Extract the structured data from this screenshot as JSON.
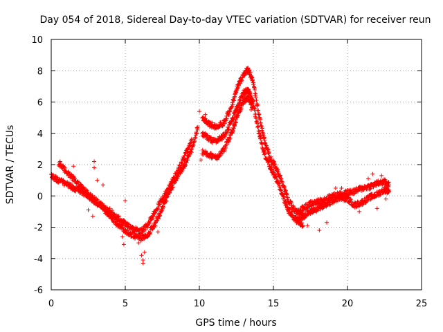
{
  "chart_data": {
    "type": "scatter",
    "title": "Day 054 of 2018, Sidereal Day-to-day VTEC variation (SDTVAR) for receiver reun",
    "xlabel": "GPS time / hours",
    "ylabel": "SDTVAR / TECUs",
    "xlim": [
      0,
      25
    ],
    "ylim": [
      -6,
      10
    ],
    "xticks": [
      0,
      5,
      10,
      15,
      20,
      25
    ],
    "yticks": [
      -6,
      -4,
      -2,
      0,
      2,
      4,
      6,
      8,
      10
    ],
    "grid": true,
    "marker": "+",
    "color": "#ff0000",
    "series": [
      {
        "name": "SDTVAR",
        "bands": [
          {
            "x": [
              0.0,
              0.5,
              1.0,
              1.5,
              2.0,
              2.5,
              3.0,
              3.5,
              4.0,
              4.5,
              5.0,
              5.5,
              6.0,
              6.5,
              7.0,
              7.5,
              8.0,
              8.5,
              9.0,
              9.5,
              9.9
            ],
            "y": [
              1.3,
              1.0,
              0.8,
              0.5,
              0.3,
              0.0,
              -0.4,
              -0.8,
              -1.3,
              -1.8,
              -2.2,
              -2.5,
              -2.7,
              -2.5,
              -1.8,
              -0.8,
              0.3,
              1.2,
              2.0,
              3.0,
              4.4
            ]
          },
          {
            "x": [
              0.5,
              1.0,
              1.5,
              2.0,
              2.5,
              3.0,
              3.5,
              4.0,
              4.5,
              5.0,
              5.5,
              6.0,
              6.5,
              7.0,
              7.5,
              8.0,
              8.5,
              9.0,
              9.5
            ],
            "y": [
              2.0,
              1.6,
              1.1,
              0.6,
              0.1,
              -0.3,
              -0.7,
              -1.0,
              -1.4,
              -1.8,
              -2.1,
              -2.3,
              -1.9,
              -1.0,
              -0.2,
              0.6,
              1.5,
              2.5,
              3.6
            ]
          },
          {
            "x": [
              10.2,
              10.7,
              11.2,
              11.7,
              12.2,
              12.6,
              13.0,
              13.3,
              13.6,
              14.0,
              14.4,
              14.8,
              15.2,
              15.6,
              16.0,
              16.5,
              17.0
            ],
            "y": [
              5.0,
              4.6,
              4.4,
              4.7,
              5.8,
              7.0,
              7.8,
              8.1,
              7.4,
              5.3,
              3.5,
              2.4,
              1.8,
              0.9,
              -0.3,
              -1.0,
              -1.1
            ]
          },
          {
            "x": [
              10.2,
              10.7,
              11.2,
              11.7,
              12.2,
              12.6,
              13.0,
              13.3,
              13.6,
              14.0,
              14.4,
              14.8,
              15.2,
              15.6,
              16.0,
              16.5,
              17.0
            ],
            "y": [
              4.0,
              3.6,
              3.5,
              3.9,
              4.8,
              5.8,
              6.6,
              6.7,
              6.1,
              4.2,
              2.7,
              1.8,
              1.1,
              0.1,
              -0.9,
              -1.5,
              -1.9
            ]
          },
          {
            "x": [
              10.2,
              10.7,
              11.2,
              11.7,
              12.2,
              12.6,
              13.0,
              13.3,
              13.6
            ],
            "y": [
              2.8,
              2.6,
              2.5,
              3.0,
              4.1,
              5.2,
              6.1,
              6.3,
              5.7
            ]
          },
          {
            "x": [
              16.5,
              17.0,
              17.5,
              18.0,
              18.5,
              19.0,
              19.5,
              20.0,
              20.5,
              21.0,
              21.5,
              22.0,
              22.5,
              22.8
            ],
            "y": [
              -1.2,
              -0.8,
              -0.5,
              -0.4,
              -0.2,
              0.0,
              0.1,
              0.2,
              0.3,
              0.5,
              0.6,
              0.8,
              0.9,
              0.7
            ]
          },
          {
            "x": [
              16.5,
              17.0,
              17.5,
              18.0,
              18.5,
              19.0,
              19.5,
              20.0,
              20.5,
              21.0,
              21.5,
              22.0,
              22.5,
              22.8
            ],
            "y": [
              -1.6,
              -1.3,
              -1.0,
              -0.8,
              -0.6,
              -0.3,
              -0.1,
              -0.2,
              -0.6,
              -0.4,
              -0.1,
              0.1,
              0.4,
              0.3
            ]
          }
        ],
        "outliers": [
          {
            "x": 0.6,
            "y": 2.2
          },
          {
            "x": 1.5,
            "y": 1.2
          },
          {
            "x": 1.5,
            "y": 1.9
          },
          {
            "x": 2.9,
            "y": 2.2
          },
          {
            "x": 2.9,
            "y": 1.8
          },
          {
            "x": 3.1,
            "y": 1.0
          },
          {
            "x": 3.5,
            "y": 0.7
          },
          {
            "x": 2.5,
            "y": -0.9
          },
          {
            "x": 2.8,
            "y": -1.3
          },
          {
            "x": 4.8,
            "y": -2.6
          },
          {
            "x": 4.9,
            "y": -3.1
          },
          {
            "x": 5.0,
            "y": -0.3
          },
          {
            "x": 5.9,
            "y": -3.0
          },
          {
            "x": 6.2,
            "y": -4.1
          },
          {
            "x": 6.2,
            "y": -4.3
          },
          {
            "x": 6.1,
            "y": -3.8
          },
          {
            "x": 6.3,
            "y": -3.6
          },
          {
            "x": 7.2,
            "y": -2.3
          },
          {
            "x": 10.0,
            "y": 5.4
          },
          {
            "x": 10.4,
            "y": 5.2
          },
          {
            "x": 10.1,
            "y": 2.3
          },
          {
            "x": 13.5,
            "y": 5.5
          },
          {
            "x": 17.3,
            "y": -1.9
          },
          {
            "x": 18.1,
            "y": -2.2
          },
          {
            "x": 18.6,
            "y": -1.7
          },
          {
            "x": 19.2,
            "y": 0.5
          },
          {
            "x": 19.6,
            "y": 0.5
          },
          {
            "x": 20.8,
            "y": -1.0
          },
          {
            "x": 21.4,
            "y": 1.1
          },
          {
            "x": 21.7,
            "y": 1.4
          },
          {
            "x": 22.0,
            "y": -0.8
          },
          {
            "x": 22.3,
            "y": 1.3
          },
          {
            "x": 22.6,
            "y": -0.2
          }
        ]
      }
    ]
  }
}
